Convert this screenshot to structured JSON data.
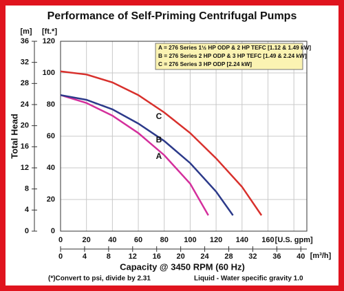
{
  "chart_data": {
    "type": "line",
    "title": "Performance of Self-Priming Centrifugal Pumps",
    "xlabel": "Capacity @ 3450 RPM (60 Hz)",
    "ylabel": "Total Head",
    "y_unit": "[ft.*]",
    "y2_unit": "[m]",
    "x2_unit": "[m³/h]",
    "footnotes": [
      "(*)Convert to psi, divide by 2.31",
      "Liquid - Water specific gravity 1.0"
    ],
    "xlim": [
      0,
      190
    ],
    "xticks": [
      0,
      20,
      40,
      60,
      80,
      100,
      120,
      140,
      160,
      {
        "value": 180,
        "label": "[U.S. gpm]"
      }
    ],
    "x2lim": [
      0,
      41
    ],
    "x2ticks": [
      0,
      4,
      8,
      12,
      16,
      20,
      24,
      28,
      32,
      36,
      40
    ],
    "ylim": [
      0,
      120
    ],
    "yticks": [
      0,
      20,
      40,
      60,
      80,
      100,
      120
    ],
    "y2lim": [
      0,
      36
    ],
    "y2ticks": [
      0,
      4,
      8,
      12,
      16,
      20,
      24,
      28,
      32,
      36
    ],
    "grid": true,
    "series": [
      {
        "name": "A = 276 Series 1½ HP ODP & 2 HP TEFC [1.12 & 1.49 kW]",
        "label": "A",
        "color": "#d42f9c",
        "x": [
          0,
          20,
          40,
          60,
          80,
          100,
          114
        ],
        "values": [
          86,
          81,
          73,
          62,
          48,
          30,
          10
        ]
      },
      {
        "name": "B = 276 Series 2 HP ODP & 3 HP TEFC [1.49 & 2.24 kW]",
        "label": "B",
        "color": "#2c3a8a",
        "x": [
          0,
          20,
          40,
          60,
          80,
          100,
          120,
          133
        ],
        "values": [
          86,
          83,
          77,
          68,
          57,
          43,
          25,
          10
        ]
      },
      {
        "name": "C = 276 Series 3 HP ODP [2.24 kW]",
        "label": "C",
        "color": "#d8302c",
        "x": [
          0,
          20,
          40,
          60,
          80,
          100,
          120,
          140,
          155
        ],
        "values": [
          101,
          99,
          94,
          86,
          75,
          62,
          46,
          28,
          10
        ]
      }
    ]
  }
}
